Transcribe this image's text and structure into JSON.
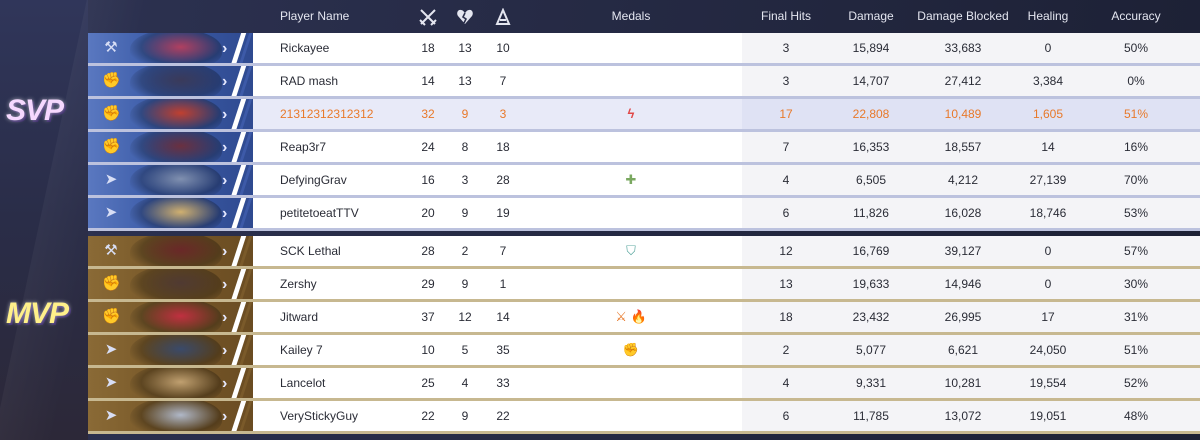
{
  "headers": {
    "player_name": "Player Name",
    "kills_icon": "crossed-swords-icon",
    "deaths_icon": "broken-heart-icon",
    "assists_icon": "assist-hands-icon",
    "medals": "Medals",
    "final_hits": "Final Hits",
    "damage": "Damage",
    "damage_blocked": "Damage Blocked",
    "healing": "Healing",
    "accuracy": "Accuracy"
  },
  "team_blue": {
    "tag": "SVP",
    "color": "#3c5ca8",
    "players": [
      {
        "name": "Rickayee",
        "kills": "18",
        "deaths": "13",
        "assists": "10",
        "medal": "",
        "final_hits": "3",
        "damage": "15,894",
        "damage_blocked": "33,683",
        "healing": "0",
        "accuracy": "50%"
      },
      {
        "name": "RAD mash",
        "kills": "14",
        "deaths": "13",
        "assists": "7",
        "medal": "",
        "final_hits": "3",
        "damage": "14,707",
        "damage_blocked": "27,412",
        "healing": "3,384",
        "accuracy": "0%"
      },
      {
        "name": "21312312312312",
        "kills": "32",
        "deaths": "9",
        "assists": "3",
        "medal": "ϟ",
        "final_hits": "17",
        "damage": "22,808",
        "damage_blocked": "10,489",
        "healing": "1,605",
        "accuracy": "51%"
      },
      {
        "name": "Reap3r7",
        "kills": "24",
        "deaths": "8",
        "assists": "18",
        "medal": "",
        "final_hits": "7",
        "damage": "16,353",
        "damage_blocked": "18,557",
        "healing": "14",
        "accuracy": "16%"
      },
      {
        "name": "DefyingGrav",
        "kills": "16",
        "deaths": "3",
        "assists": "28",
        "medal": "✚",
        "final_hits": "4",
        "damage": "6,505",
        "damage_blocked": "4,212",
        "healing": "27,139",
        "accuracy": "70%"
      },
      {
        "name": "petitetoeatTTV",
        "kills": "20",
        "deaths": "9",
        "assists": "19",
        "medal": "",
        "final_hits": "6",
        "damage": "11,826",
        "damage_blocked": "16,028",
        "healing": "18,746",
        "accuracy": "53%"
      }
    ]
  },
  "team_gold": {
    "tag": "MVP",
    "color": "#7a5a2a",
    "players": [
      {
        "name": "SCK Lethal",
        "kills": "28",
        "deaths": "2",
        "assists": "7",
        "medal": "⛉",
        "final_hits": "12",
        "damage": "16,769",
        "damage_blocked": "39,127",
        "healing": "0",
        "accuracy": "57%"
      },
      {
        "name": "Zershy",
        "kills": "29",
        "deaths": "9",
        "assists": "1",
        "medal": "",
        "final_hits": "13",
        "damage": "19,633",
        "damage_blocked": "14,946",
        "healing": "0",
        "accuracy": "30%"
      },
      {
        "name": "Jitward",
        "kills": "37",
        "deaths": "12",
        "assists": "14",
        "medal": "⚔ 🔥",
        "final_hits": "18",
        "damage": "23,432",
        "damage_blocked": "26,995",
        "healing": "17",
        "accuracy": "31%"
      },
      {
        "name": "Kailey 7",
        "kills": "10",
        "deaths": "5",
        "assists": "35",
        "medal": "✊",
        "final_hits": "2",
        "damage": "5,077",
        "damage_blocked": "6,621",
        "healing": "24,050",
        "accuracy": "51%"
      },
      {
        "name": "Lancelot",
        "kills": "25",
        "deaths": "4",
        "assists": "33",
        "medal": "",
        "final_hits": "4",
        "damage": "9,331",
        "damage_blocked": "10,281",
        "healing": "19,554",
        "accuracy": "52%"
      },
      {
        "name": "VeryStickyGuy",
        "kills": "22",
        "deaths": "9",
        "assists": "22",
        "medal": "",
        "final_hits": "6",
        "damage": "11,785",
        "damage_blocked": "13,072",
        "healing": "19,051",
        "accuracy": "48%"
      }
    ]
  },
  "highlight_color": "#e8792a"
}
